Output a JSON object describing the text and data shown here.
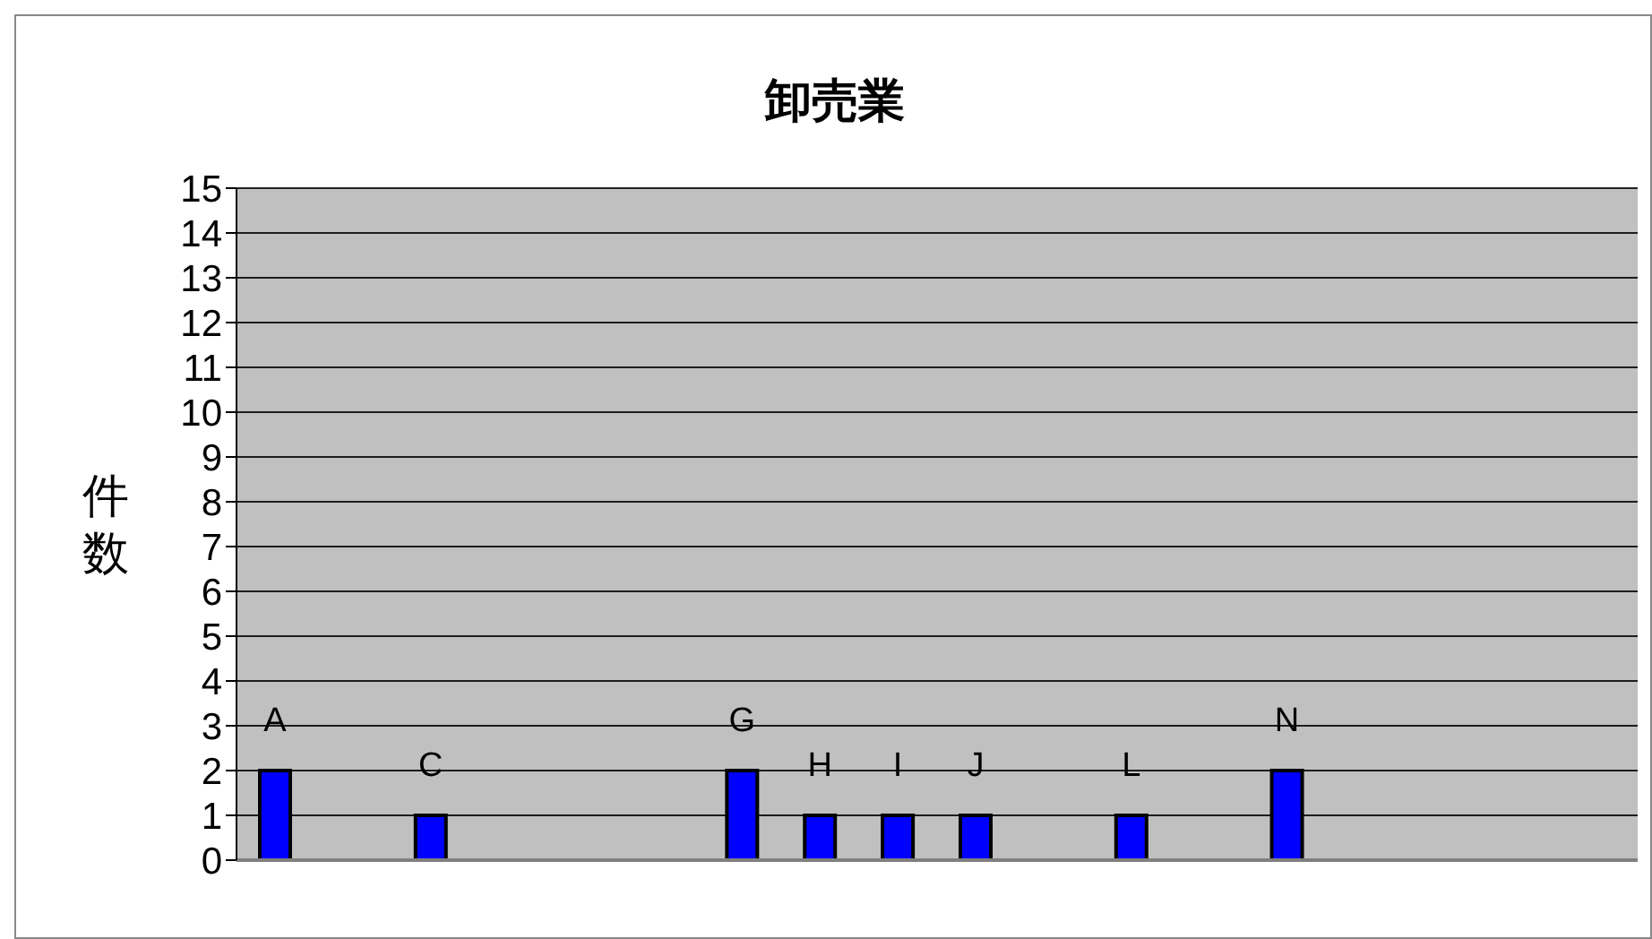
{
  "chart_data": {
    "type": "bar",
    "title": "卸売業",
    "ylabel": "件数",
    "categories": [
      "A",
      null,
      "C",
      null,
      null,
      null,
      "G",
      "H",
      "I",
      "J",
      null,
      "L",
      null,
      "N",
      null,
      null,
      null,
      null
    ],
    "values": [
      2,
      null,
      1,
      null,
      null,
      null,
      2,
      1,
      1,
      1,
      null,
      1,
      null,
      2,
      null,
      null,
      null,
      null
    ],
    "color": "#0000ff",
    "ylim": [
      0,
      15
    ],
    "yticks": [
      0,
      1,
      2,
      3,
      4,
      5,
      6,
      7,
      8,
      9,
      10,
      11,
      12,
      13,
      14,
      15
    ],
    "grid": "y",
    "tick_labels": "y"
  }
}
